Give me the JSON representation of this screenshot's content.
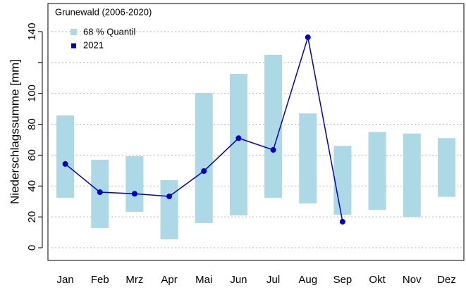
{
  "chart_data": {
    "type": "range_bar_line",
    "y_label": "Niederschlagssumme [mm]",
    "legend_title": "Grunewald (2006-2020)",
    "legend_position": "top-left",
    "categories": [
      "Jan",
      "Feb",
      "Mrz",
      "Apr",
      "Mai",
      "Jun",
      "Jul",
      "Aug",
      "Sep",
      "Okt",
      "Nov",
      "Dez"
    ],
    "series": [
      {
        "name": "68 % Quantil",
        "color": "#add8e6",
        "low": [
          32.4,
          12.8,
          23.3,
          5.5,
          16,
          21,
          32.4,
          28.7,
          21.4,
          24.6,
          20,
          33
        ],
        "high": [
          85.7,
          57,
          59.3,
          43.8,
          100.3,
          112.6,
          125,
          87,
          66,
          75,
          74,
          71
        ]
      },
      {
        "name": "2021",
        "color": "#0000cd",
        "values": [
          54.3,
          36,
          35,
          33.3,
          49.7,
          71,
          63.4,
          136.3,
          16.9,
          null,
          null,
          null
        ]
      }
    ],
    "ylim": [
      -8.2,
      158.2
    ],
    "yticks": [
      0,
      20,
      40,
      60,
      80,
      100,
      {
        "value": 120,
        "label": null
      },
      140
    ],
    "grid": true
  }
}
